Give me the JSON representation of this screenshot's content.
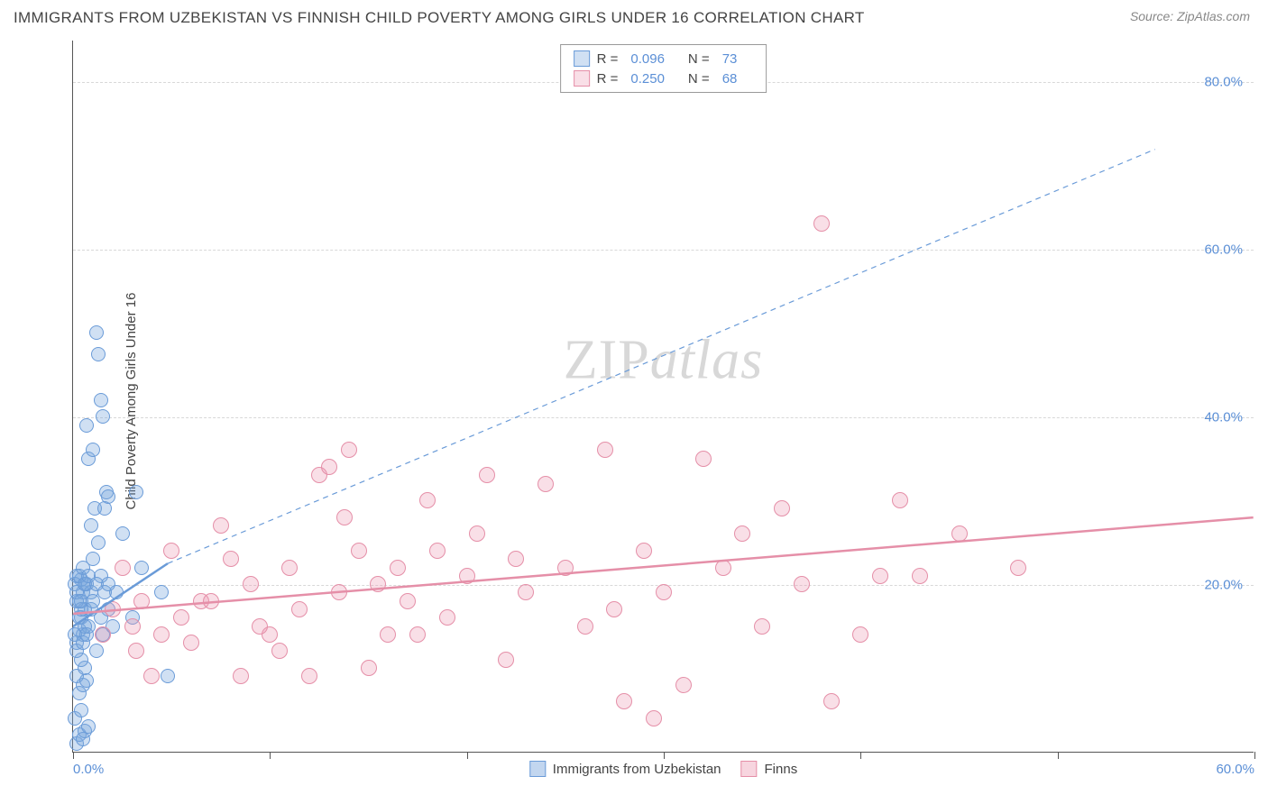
{
  "title": "IMMIGRANTS FROM UZBEKISTAN VS FINNISH CHILD POVERTY AMONG GIRLS UNDER 16 CORRELATION CHART",
  "source": "Source: ZipAtlas.com",
  "ylabel": "Child Poverty Among Girls Under 16",
  "watermark_a": "ZIP",
  "watermark_b": "atlas",
  "xlim": [
    0,
    60
  ],
  "ylim": [
    0,
    85
  ],
  "x_ticks": [
    0,
    10,
    20,
    30,
    40,
    50,
    60
  ],
  "x_tick_labels": [
    "0.0%",
    "",
    "",
    "",
    "",
    "",
    "60.0%"
  ],
  "y_gridlines": [
    20,
    40,
    60,
    80
  ],
  "y_tick_labels": [
    "20.0%",
    "40.0%",
    "60.0%",
    "80.0%"
  ],
  "series": [
    {
      "key": "uzbekistan",
      "label": "Immigrants from Uzbekistan",
      "R": "0.096",
      "N": "73",
      "color_fill": "rgba(120,165,220,0.35)",
      "color_stroke": "#6a9bd8",
      "marker_radius": 8,
      "trend_solid": {
        "x1": 0,
        "y1": 15,
        "x2": 4.8,
        "y2": 22.5
      },
      "trend_dash": {
        "x1": 4.8,
        "y1": 22.5,
        "x2": 55,
        "y2": 72
      },
      "points": [
        [
          0.2,
          1
        ],
        [
          0.3,
          2
        ],
        [
          0.5,
          1.5
        ],
        [
          0.6,
          2.5
        ],
        [
          0.1,
          4
        ],
        [
          0.4,
          5
        ],
        [
          0.8,
          3
        ],
        [
          0.3,
          7
        ],
        [
          0.5,
          8
        ],
        [
          0.2,
          9
        ],
        [
          0.6,
          10
        ],
        [
          0.4,
          11
        ],
        [
          0.7,
          8.5
        ],
        [
          0.2,
          13
        ],
        [
          0.5,
          14
        ],
        [
          0.3,
          14.5
        ],
        [
          0.8,
          15
        ],
        [
          0.1,
          14
        ],
        [
          0.4,
          16
        ],
        [
          0.6,
          17
        ],
        [
          0.9,
          17
        ],
        [
          0.3,
          18
        ],
        [
          0.2,
          18
        ],
        [
          0.5,
          19
        ],
        [
          0.7,
          20
        ],
        [
          0.4,
          20.5
        ],
        [
          0.2,
          21
        ],
        [
          0.6,
          20
        ],
        [
          1.2,
          12
        ],
        [
          1.5,
          14
        ],
        [
          1.8,
          17
        ],
        [
          2.0,
          15
        ],
        [
          2.2,
          19
        ],
        [
          1.4,
          21
        ],
        [
          1.0,
          23
        ],
        [
          1.3,
          25
        ],
        [
          0.9,
          27
        ],
        [
          1.1,
          29
        ],
        [
          1.6,
          29
        ],
        [
          1.7,
          31
        ],
        [
          1.8,
          30.5
        ],
        [
          2.5,
          26
        ],
        [
          3.0,
          16
        ],
        [
          3.2,
          31
        ],
        [
          3.5,
          22
        ],
        [
          4.5,
          19
        ],
        [
          4.8,
          9
        ],
        [
          0.8,
          35
        ],
        [
          1.0,
          36
        ],
        [
          0.7,
          39
        ],
        [
          1.5,
          40
        ],
        [
          1.4,
          42
        ],
        [
          1.2,
          50
        ],
        [
          1.3,
          47.5
        ],
        [
          0.2,
          12
        ],
        [
          0.3,
          16
        ],
        [
          0.5,
          13
        ],
        [
          0.6,
          15
        ],
        [
          0.4,
          17
        ],
        [
          0.7,
          14
        ],
        [
          0.9,
          19
        ],
        [
          0.1,
          20
        ],
        [
          0.3,
          21
        ],
        [
          0.2,
          19
        ],
        [
          0.5,
          22
        ],
        [
          0.4,
          18
        ],
        [
          0.6,
          20
        ],
        [
          0.8,
          21
        ],
        [
          1.0,
          18
        ],
        [
          1.2,
          20
        ],
        [
          1.4,
          16
        ],
        [
          1.6,
          19
        ],
        [
          1.8,
          20
        ]
      ]
    },
    {
      "key": "finns",
      "label": "Finns",
      "R": "0.250",
      "N": "68",
      "color_fill": "rgba(235,150,175,0.30)",
      "color_stroke": "#e58fa8",
      "marker_radius": 9,
      "trend_solid": {
        "x1": 0,
        "y1": 16.5,
        "x2": 60,
        "y2": 28
      },
      "trend_dash": null,
      "points": [
        [
          1.5,
          14
        ],
        [
          2.0,
          17
        ],
        [
          3.0,
          15
        ],
        [
          3.5,
          18
        ],
        [
          4.0,
          9
        ],
        [
          4.5,
          14
        ],
        [
          5.0,
          24
        ],
        [
          6.0,
          13
        ],
        [
          6.5,
          18
        ],
        [
          7.0,
          18
        ],
        [
          8.0,
          23
        ],
        [
          8.5,
          9
        ],
        [
          9.0,
          20
        ],
        [
          10.0,
          14
        ],
        [
          10.5,
          12
        ],
        [
          11.0,
          22
        ],
        [
          12.0,
          9
        ],
        [
          12.5,
          33
        ],
        [
          13.0,
          34
        ],
        [
          13.5,
          19
        ],
        [
          14.0,
          36
        ],
        [
          14.5,
          24
        ],
        [
          15.0,
          10
        ],
        [
          16.0,
          14
        ],
        [
          16.5,
          22
        ],
        [
          17.0,
          18
        ],
        [
          18.0,
          30
        ],
        [
          18.5,
          24
        ],
        [
          19.0,
          16
        ],
        [
          20.0,
          21
        ],
        [
          20.5,
          26
        ],
        [
          21.0,
          33
        ],
        [
          22.0,
          11
        ],
        [
          22.5,
          23
        ],
        [
          23.0,
          19
        ],
        [
          24.0,
          32
        ],
        [
          25.0,
          22
        ],
        [
          26.0,
          15
        ],
        [
          27.0,
          36
        ],
        [
          27.5,
          17
        ],
        [
          28.0,
          6
        ],
        [
          29.0,
          24
        ],
        [
          29.5,
          4
        ],
        [
          30.0,
          19
        ],
        [
          31.0,
          8
        ],
        [
          32.0,
          35
        ],
        [
          33.0,
          22
        ],
        [
          34.0,
          26
        ],
        [
          35.0,
          15
        ],
        [
          36.0,
          29
        ],
        [
          37.0,
          20
        ],
        [
          38.0,
          63
        ],
        [
          38.5,
          6
        ],
        [
          40.0,
          14
        ],
        [
          41.0,
          21
        ],
        [
          42.0,
          30
        ],
        [
          43.0,
          21
        ],
        [
          45.0,
          26
        ],
        [
          48.0,
          22
        ],
        [
          2.5,
          22
        ],
        [
          3.2,
          12
        ],
        [
          5.5,
          16
        ],
        [
          7.5,
          27
        ],
        [
          9.5,
          15
        ],
        [
          11.5,
          17
        ],
        [
          13.8,
          28
        ],
        [
          15.5,
          20
        ],
        [
          17.5,
          14
        ]
      ]
    }
  ],
  "legend_bottom": [
    {
      "swatch_fill": "rgba(120,165,220,0.45)",
      "swatch_border": "#6a9bd8",
      "label": "Immigrants from Uzbekistan"
    },
    {
      "swatch_fill": "rgba(235,150,175,0.40)",
      "swatch_border": "#e58fa8",
      "label": "Finns"
    }
  ],
  "trend_line_width_solid": 2.5,
  "trend_line_width_dash": 1.2,
  "dash_pattern": "6,5"
}
